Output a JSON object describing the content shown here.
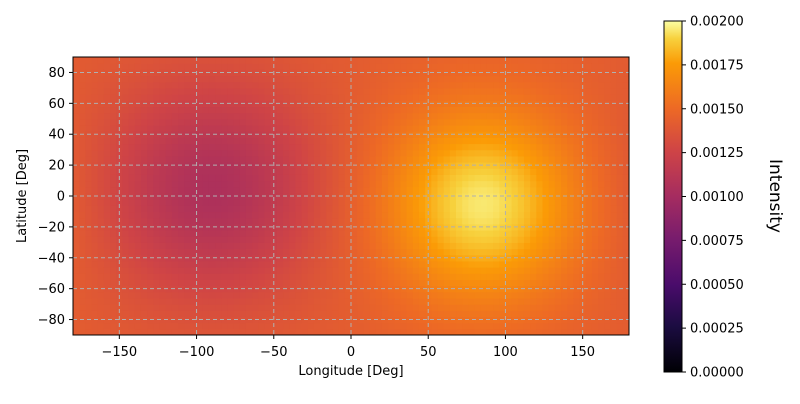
{
  "chart_data": {
    "type": "heatmap",
    "xlabel": "Longitude [Deg]",
    "ylabel": "Latitude [Deg]",
    "xlim": [
      -180,
      180
    ],
    "ylim": [
      -90,
      90
    ],
    "xticks": [
      -150,
      -100,
      -50,
      0,
      50,
      100,
      150
    ],
    "yticks": [
      -80,
      -60,
      -40,
      -20,
      0,
      20,
      40,
      60,
      80
    ],
    "grid": true,
    "colormap": "inferno",
    "colorbar": {
      "label": "Intensity",
      "vmin": 0.0,
      "vmax": 0.002,
      "ticks": [
        "0.00000",
        "0.00025",
        "0.00050",
        "0.00075",
        "0.00100",
        "0.00125",
        "0.00150",
        "0.00175",
        "0.00200"
      ]
    },
    "field": {
      "description_of_values": "intensity over longitude/latitude grid",
      "bright_spot": {
        "lon": 85,
        "lat": -5,
        "value": 0.00195
      },
      "dark_spot": {
        "lon": -90,
        "lat": 5,
        "value": 0.00105
      },
      "background_value": 0.00142
    }
  }
}
